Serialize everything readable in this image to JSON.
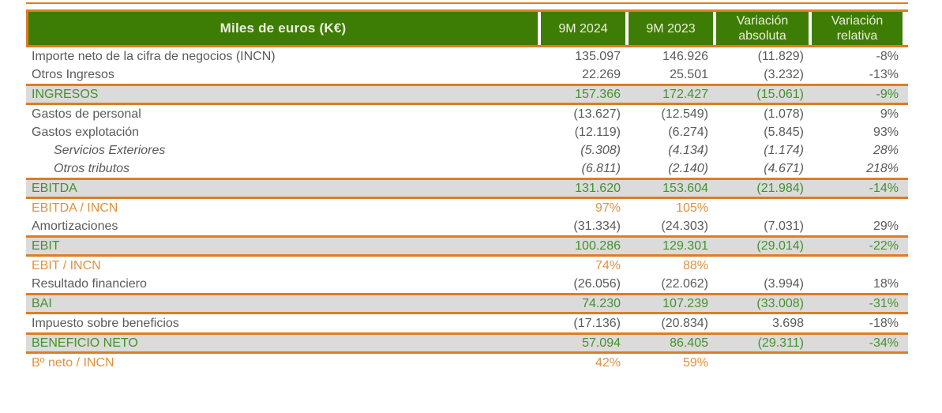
{
  "chart_data": {
    "type": "table",
    "title": "Miles de euros (K€)",
    "columns": [
      "9M 2024",
      "9M 2023",
      "Variación absoluta",
      "Variación relativa"
    ],
    "rows": [
      {
        "label": "Importe neto de la cifra de negocios (INCN)",
        "style": "normal",
        "values": [
          "135.097",
          "146.926",
          "(11.829)",
          "-8%"
        ]
      },
      {
        "label": "Otros Ingresos",
        "style": "normal",
        "values": [
          "22.269",
          "25.501",
          "(3.232)",
          "-13%"
        ]
      },
      {
        "label": "INGRESOS",
        "style": "total",
        "values": [
          "157.366",
          "172.427",
          "(15.061)",
          "-9%"
        ]
      },
      {
        "label": "Gastos de personal",
        "style": "normal",
        "values": [
          "(13.627)",
          "(12.549)",
          "(1.078)",
          "9%"
        ]
      },
      {
        "label": "Gastos explotación",
        "style": "normal",
        "values": [
          "(12.119)",
          "(6.274)",
          "(5.845)",
          "93%"
        ]
      },
      {
        "label": "Servicios Exteriores",
        "style": "detail",
        "values": [
          "(5.308)",
          "(4.134)",
          "(1.174)",
          "28%"
        ]
      },
      {
        "label": "Otros tributos",
        "style": "detail",
        "values": [
          "(6.811)",
          "(2.140)",
          "(4.671)",
          "218%"
        ]
      },
      {
        "label": "EBITDA",
        "style": "total",
        "values": [
          "131.620",
          "153.604",
          "(21.984)",
          "-14%"
        ]
      },
      {
        "label": "EBITDA / INCN",
        "style": "ratio",
        "values": [
          "97%",
          "105%",
          "",
          ""
        ]
      },
      {
        "label": "Amortizaciones",
        "style": "normal",
        "values": [
          "(31.334)",
          "(24.303)",
          "(7.031)",
          "29%"
        ]
      },
      {
        "label": "EBIT",
        "style": "total",
        "values": [
          "100.286",
          "129.301",
          "(29.014)",
          "-22%"
        ]
      },
      {
        "label": "EBIT / INCN",
        "style": "ratio",
        "values": [
          "74%",
          "88%",
          "",
          ""
        ]
      },
      {
        "label": "Resultado financiero",
        "style": "normal",
        "values": [
          "(26.056)",
          "(22.062)",
          "(3.994)",
          "18%"
        ]
      },
      {
        "label": "BAI",
        "style": "total",
        "values": [
          "74.230",
          "107.239",
          "(33.008)",
          "-31%"
        ]
      },
      {
        "label": "Impuesto sobre beneficios",
        "style": "normal",
        "values": [
          "(17.136)",
          "(20.834)",
          "3.698",
          "-18%"
        ]
      },
      {
        "label": "BENEFICIO NETO",
        "style": "total",
        "values": [
          "57.094",
          "86.405",
          "(29.311)",
          "-34%"
        ]
      },
      {
        "label": "Bº neto / INCN",
        "style": "ratio",
        "values": [
          "42%",
          "59%",
          "",
          ""
        ]
      }
    ]
  },
  "colors": {
    "header_green": "#3E7D05",
    "accent_orange": "#DD7D24",
    "total_row_gray": "#DBDBDB",
    "total_text_green": "#44912F",
    "ratio_text_orange": "#E0913F",
    "body_text_gray": "#5A5A5A",
    "header_text_cream": "#EEEEDD"
  }
}
